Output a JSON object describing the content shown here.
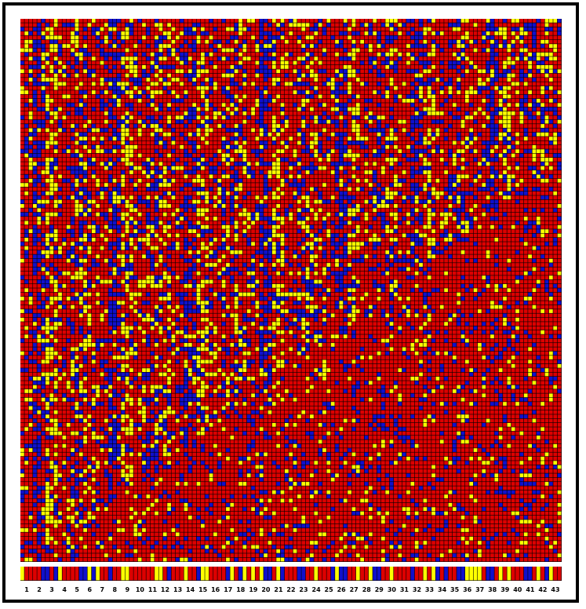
{
  "colors": {
    "red": "#dd0000",
    "blue": "#1010cc",
    "yellow": "#ffff00",
    "grid_line": "#000000"
  },
  "column_labels": [
    "1",
    "2",
    "3",
    "4",
    "5",
    "6",
    "7",
    "8",
    "9",
    "10",
    "11",
    "12",
    "13",
    "14",
    "15",
    "16",
    "17",
    "18",
    "19",
    "20",
    "21",
    "22",
    "23",
    "24",
    "25",
    "26",
    "27",
    "28",
    "29",
    "30",
    "31",
    "32",
    "33",
    "34",
    "35",
    "36",
    "37",
    "38",
    "39",
    "40",
    "41",
    "42",
    "43"
  ],
  "grid": {
    "columns": 43,
    "rows": 43,
    "subcells_per_side": 3
  }
}
